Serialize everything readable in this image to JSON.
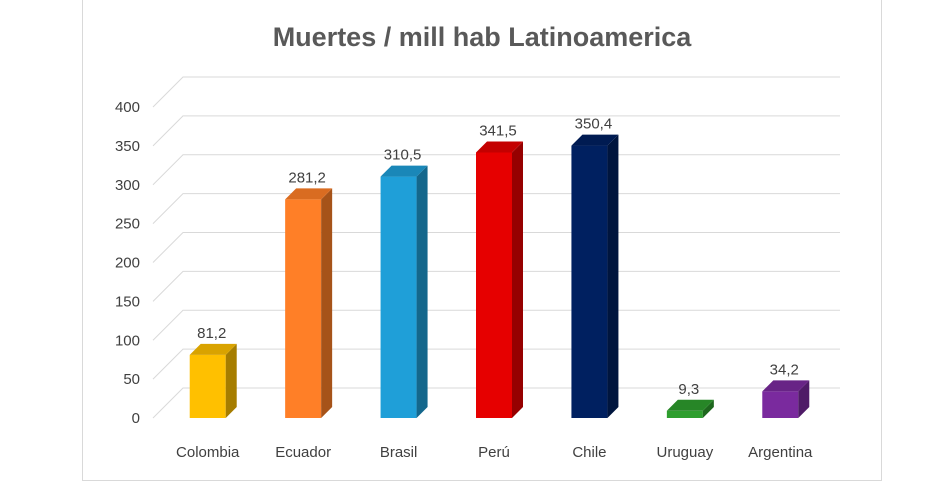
{
  "chart_data": {
    "type": "bar",
    "title": "Muertes / mill hab Latinoamerica",
    "xlabel": "",
    "ylabel": "",
    "ylim": [
      0,
      400
    ],
    "yticks": [
      0,
      50,
      100,
      150,
      200,
      250,
      300,
      350,
      400
    ],
    "categories": [
      "Colombia",
      "Ecuador",
      "Brasil",
      "Perú",
      "Chile",
      "Uruguay",
      "Argentina"
    ],
    "values": [
      81.2,
      281.2,
      310.5,
      341.5,
      350.4,
      9.3,
      34.2
    ],
    "data_labels": [
      "81,2",
      "281,2",
      "310,5",
      "341,5",
      "350,4",
      "9,3",
      "34,2"
    ],
    "bar_colors": [
      "#FFC000",
      "#FF7F27",
      "#1F9FD8",
      "#E60000",
      "#002060",
      "#2E9E2E",
      "#7A2A9E"
    ],
    "grid": true,
    "legend": "none",
    "style": "3d-column"
  }
}
